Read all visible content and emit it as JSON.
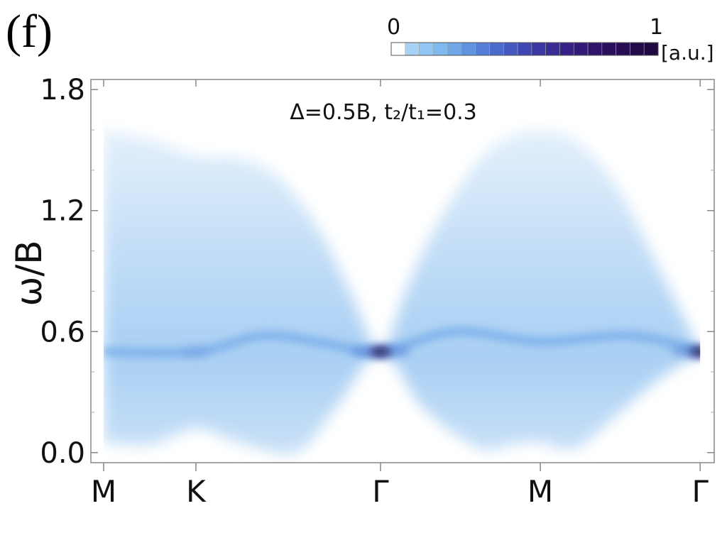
{
  "panel_label": "(f)",
  "chart_data": {
    "type": "heatmap",
    "annotation": "Δ=0.5B, t₂/t₁=0.3",
    "ylabel": "ω/B",
    "xlabel": "",
    "ylim": [
      -0.05,
      1.85
    ],
    "yticks": [
      0.0,
      0.6,
      1.2,
      1.8
    ],
    "ytick_labels": [
      "0.0",
      "0.6",
      "1.2",
      "1.8"
    ],
    "xticks": [
      {
        "label": "M",
        "x": 0.0
      },
      {
        "label": "K",
        "x": 0.577
      },
      {
        "label": "Γ",
        "x": 1.732
      },
      {
        "label": "M",
        "x": 2.732
      },
      {
        "label": "Γ",
        "x": 3.732
      }
    ],
    "xlim": [
      -0.08,
      3.82
    ],
    "colorbar": {
      "min_label": "0",
      "max_label": "1",
      "unit": "[a.u.]",
      "colors": [
        "#ffffff",
        "#a8d2f5",
        "#93c5f2",
        "#80b9ee",
        "#6ea6e6",
        "#5f92df",
        "#557ed6",
        "#4c6acb",
        "#4658bf",
        "#4147b2",
        "#3d37a3",
        "#3a2b95",
        "#372186",
        "#341a77",
        "#30146a",
        "#2c105e",
        "#280d53",
        "#230b49",
        "#1f0940"
      ]
    },
    "continuum_upper": [
      {
        "x": 0.0,
        "w": 1.6
      },
      {
        "x": 0.3,
        "w": 1.55
      },
      {
        "x": 0.577,
        "w": 1.47
      },
      {
        "x": 0.85,
        "w": 1.46
      },
      {
        "x": 1.1,
        "w": 1.36
      },
      {
        "x": 1.35,
        "w": 1.1
      },
      {
        "x": 1.55,
        "w": 0.78
      },
      {
        "x": 1.732,
        "w": 0.5
      },
      {
        "x": 1.9,
        "w": 0.82
      },
      {
        "x": 2.1,
        "w": 1.15
      },
      {
        "x": 2.35,
        "w": 1.45
      },
      {
        "x": 2.55,
        "w": 1.57
      },
      {
        "x": 2.732,
        "w": 1.6
      },
      {
        "x": 2.95,
        "w": 1.55
      },
      {
        "x": 3.2,
        "w": 1.33
      },
      {
        "x": 3.45,
        "w": 0.95
      },
      {
        "x": 3.732,
        "w": 0.5
      }
    ],
    "continuum_lower": [
      {
        "x": 0.0,
        "w": 0.05
      },
      {
        "x": 0.3,
        "w": 0.04
      },
      {
        "x": 0.577,
        "w": 0.12
      },
      {
        "x": 0.85,
        "w": 0.05
      },
      {
        "x": 1.2,
        "w": 0.0
      },
      {
        "x": 1.45,
        "w": 0.22
      },
      {
        "x": 1.732,
        "w": 0.5
      },
      {
        "x": 2.0,
        "w": 0.22
      },
      {
        "x": 2.35,
        "w": 0.02
      },
      {
        "x": 2.55,
        "w": 0.04
      },
      {
        "x": 2.732,
        "w": 0.05
      },
      {
        "x": 2.95,
        "w": 0.02
      },
      {
        "x": 3.2,
        "w": 0.18
      },
      {
        "x": 3.45,
        "w": 0.35
      },
      {
        "x": 3.732,
        "w": 0.5
      }
    ],
    "bright_mode": [
      {
        "x": 0.0,
        "w": 0.5
      },
      {
        "x": 0.577,
        "w": 0.5
      },
      {
        "x": 1.0,
        "w": 0.58
      },
      {
        "x": 1.4,
        "w": 0.54
      },
      {
        "x": 1.732,
        "w": 0.5
      },
      {
        "x": 2.2,
        "w": 0.6
      },
      {
        "x": 2.732,
        "w": 0.55
      },
      {
        "x": 3.3,
        "w": 0.58
      },
      {
        "x": 3.732,
        "w": 0.5
      }
    ],
    "hotspots": [
      {
        "x": 1.732,
        "w": 0.5,
        "intensity": 1.0
      },
      {
        "x": 3.732,
        "w": 0.5,
        "intensity": 0.95
      },
      {
        "x": 0.577,
        "w": 0.5,
        "intensity": 0.35
      }
    ]
  }
}
